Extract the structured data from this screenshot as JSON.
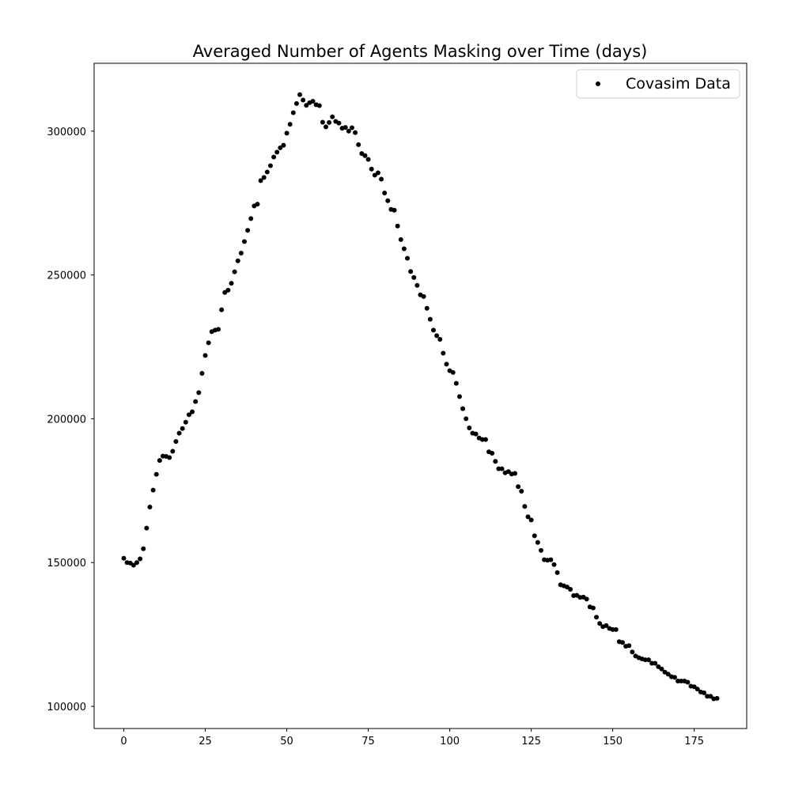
{
  "chart_data": {
    "type": "scatter",
    "title": "Averaged Number of Agents Masking over Time (days)",
    "xlabel": "",
    "ylabel": "",
    "xlim": [
      -9.1,
      191.1
    ],
    "ylim": [
      92300,
      323600
    ],
    "xticks": [
      0,
      25,
      50,
      75,
      100,
      125,
      150,
      175
    ],
    "yticks": [
      100000,
      150000,
      200000,
      250000,
      300000
    ],
    "grid": false,
    "legend_position": "top-right",
    "series": [
      {
        "name": "Covasim Data",
        "color": "#000000",
        "marker": "circle",
        "x": [
          0,
          1,
          2,
          3,
          4,
          5,
          6,
          7,
          8,
          9,
          10,
          11,
          12,
          13,
          14,
          15,
          16,
          17,
          18,
          19,
          20,
          21,
          22,
          23,
          24,
          25,
          26,
          27,
          28,
          29,
          30,
          31,
          32,
          33,
          34,
          35,
          36,
          37,
          38,
          39,
          40,
          41,
          42,
          43,
          44,
          45,
          46,
          47,
          48,
          49,
          50,
          51,
          52,
          53,
          54,
          55,
          56,
          57,
          58,
          59,
          60,
          61,
          62,
          63,
          64,
          65,
          66,
          67,
          68,
          69,
          70,
          71,
          72,
          73,
          74,
          75,
          76,
          77,
          78,
          79,
          80,
          81,
          82,
          83,
          84,
          85,
          86,
          87,
          88,
          89,
          90,
          91,
          92,
          93,
          94,
          95,
          96,
          97,
          98,
          99,
          100,
          101,
          102,
          103,
          104,
          105,
          106,
          107,
          108,
          109,
          110,
          111,
          112,
          113,
          114,
          115,
          116,
          117,
          118,
          119,
          120,
          121,
          122,
          123,
          124,
          125,
          126,
          127,
          128,
          129,
          130,
          131,
          132,
          133,
          134,
          135,
          136,
          137,
          138,
          139,
          140,
          141,
          142,
          143,
          144,
          145,
          146,
          147,
          148,
          149,
          150,
          151,
          152,
          153,
          154,
          155,
          156,
          157,
          158,
          159,
          160,
          161,
          162,
          163,
          164,
          165,
          166,
          167,
          168,
          169,
          170,
          171,
          172,
          173,
          174,
          175,
          176,
          177,
          178,
          179,
          180,
          181,
          182
        ],
        "y": [
          151500,
          150000,
          149800,
          149100,
          150000,
          151300,
          154800,
          162000,
          169300,
          175200,
          180700,
          185500,
          187000,
          186900,
          186500,
          188700,
          192100,
          195000,
          196600,
          198800,
          201400,
          202400,
          206000,
          209100,
          215800,
          222000,
          226400,
          230300,
          230800,
          231100,
          237900,
          243900,
          244700,
          247100,
          251100,
          254900,
          257600,
          261600,
          265500,
          269600,
          274000,
          274600,
          282800,
          283900,
          285800,
          288000,
          291000,
          292700,
          294200,
          295100,
          299300,
          302400,
          306400,
          309600,
          312700,
          310800,
          309000,
          309900,
          310400,
          309200,
          308900,
          303100,
          301500,
          303000,
          305000,
          303400,
          302800,
          301000,
          301300,
          300000,
          301200,
          299500,
          295300,
          292200,
          291500,
          290200,
          286800,
          284700,
          285500,
          283300,
          278500,
          275800,
          272800,
          272500,
          267000,
          262300,
          259100,
          255800,
          251200,
          249100,
          246400,
          243100,
          242500,
          238400,
          234600,
          230800,
          228900,
          227600,
          222800,
          219000,
          216700,
          216100,
          212300,
          207700,
          203500,
          200000,
          196800,
          195000,
          194700,
          193300,
          192800,
          192800,
          188500,
          188000,
          185200,
          182600,
          182600,
          181200,
          181600,
          180800,
          181000,
          176400,
          174800,
          169500,
          165900,
          164800,
          159300,
          157000,
          154200,
          151000,
          150800,
          151000,
          149300,
          146500,
          142300,
          141900,
          141500,
          140700,
          138500,
          138600,
          137900,
          138000,
          137300,
          134600,
          134200,
          131000,
          128800,
          127700,
          128100,
          127100,
          126700,
          126700,
          122500,
          122200,
          120900,
          121100,
          118900,
          117500,
          116900,
          116500,
          116200,
          116200,
          115000,
          115000,
          113800,
          113000,
          111900,
          111200,
          110300,
          110100,
          108800,
          108800,
          108800,
          108400,
          107000,
          106800,
          106000,
          105000,
          104700,
          103500,
          103500,
          102600,
          102800
        ]
      }
    ]
  }
}
